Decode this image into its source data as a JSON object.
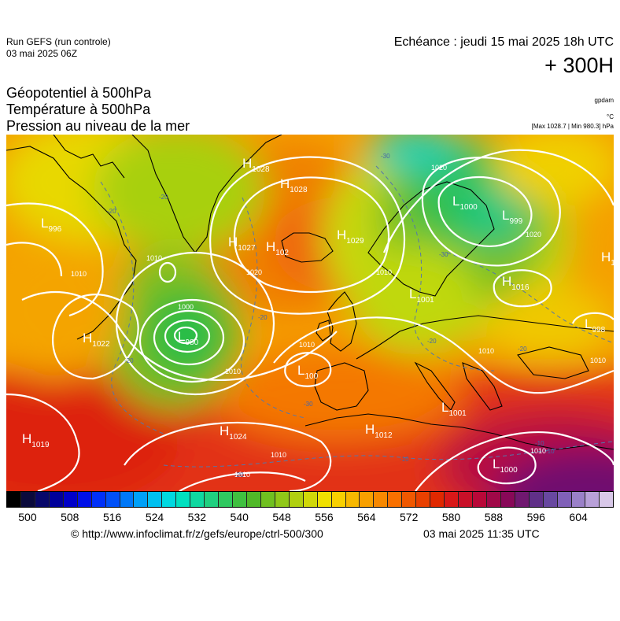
{
  "header": {
    "run_title": "Run GEFS (run controle)",
    "run_date": "03 mai 2025 06Z",
    "valid_time": "Echéance : jeudi 15 mai 2025 18h UTC",
    "lead_time": "+ 300H"
  },
  "parameters": [
    "Géopotentiel à 500hPa",
    "Température à 500hPa",
    "Pression au niveau de la mer"
  ],
  "units": {
    "geopotential": "gpdam",
    "temperature": "°C",
    "pressure": "[Max 1028.7 | Min 980.3] hPa"
  },
  "map": {
    "pressure_centers": [
      {
        "type": "H",
        "value": "1028"
      },
      {
        "type": "H",
        "value": "1028"
      },
      {
        "type": "H",
        "value": "1029"
      },
      {
        "type": "H",
        "value": "1027"
      },
      {
        "type": "H",
        "value": "102"
      },
      {
        "type": "L",
        "value": "996"
      },
      {
        "type": "L",
        "value": "980"
      },
      {
        "type": "H",
        "value": "1022"
      },
      {
        "type": "L",
        "value": "1000"
      },
      {
        "type": "L",
        "value": "999"
      },
      {
        "type": "H",
        "value": "1016"
      },
      {
        "type": "L",
        "value": "1001"
      },
      {
        "type": "L",
        "value": "100"
      },
      {
        "type": "H",
        "value": "1019"
      },
      {
        "type": "H",
        "value": "1024"
      },
      {
        "type": "H",
        "value": "1012"
      },
      {
        "type": "L",
        "value": "1001"
      },
      {
        "type": "L",
        "value": "1000"
      },
      {
        "type": "L",
        "value": "998"
      },
      {
        "type": "H",
        "value": "10"
      }
    ],
    "isobar_labels": [
      "1010",
      "1010",
      "1000",
      "1020",
      "1010",
      "1010",
      "1010",
      "1020",
      "1020",
      "1010",
      "1010",
      "1010",
      "1010",
      "1010"
    ],
    "isotherm_labels": [
      "-20",
      "-20",
      "-30",
      "-30",
      "-20",
      "-20",
      "-30",
      "-20",
      "-20",
      "-10",
      "-20",
      "-10",
      "-10"
    ]
  },
  "colorbar": {
    "colors": [
      "#000000",
      "#0a0a3c",
      "#08086a",
      "#00009a",
      "#0000c8",
      "#0010e8",
      "#0030f8",
      "#0050f8",
      "#0078f8",
      "#00a0f8",
      "#00c0f0",
      "#00d8e0",
      "#00e0c0",
      "#10d8a0",
      "#20d080",
      "#30c860",
      "#40c040",
      "#50b828",
      "#70c020",
      "#90c818",
      "#b0d010",
      "#d0d808",
      "#f0e000",
      "#f8d000",
      "#f8b800",
      "#f8a000",
      "#f88800",
      "#f87000",
      "#f05800",
      "#e84000",
      "#e02800",
      "#d81818",
      "#c81028",
      "#b80838",
      "#a00848",
      "#880858",
      "#701870",
      "#603088",
      "#6848a0",
      "#8060b8",
      "#9a80c8",
      "#b8a0d8",
      "#d8c8e8"
    ],
    "ticks": [
      "500",
      "508",
      "516",
      "524",
      "532",
      "540",
      "548",
      "556",
      "564",
      "572",
      "580",
      "588",
      "596",
      "604"
    ]
  },
  "footer": {
    "link": "© http://www.infoclimat.fr/z/gefs/europe/ctrl-500/300",
    "timestamp": "03 mai 2025 11:35 UTC"
  }
}
